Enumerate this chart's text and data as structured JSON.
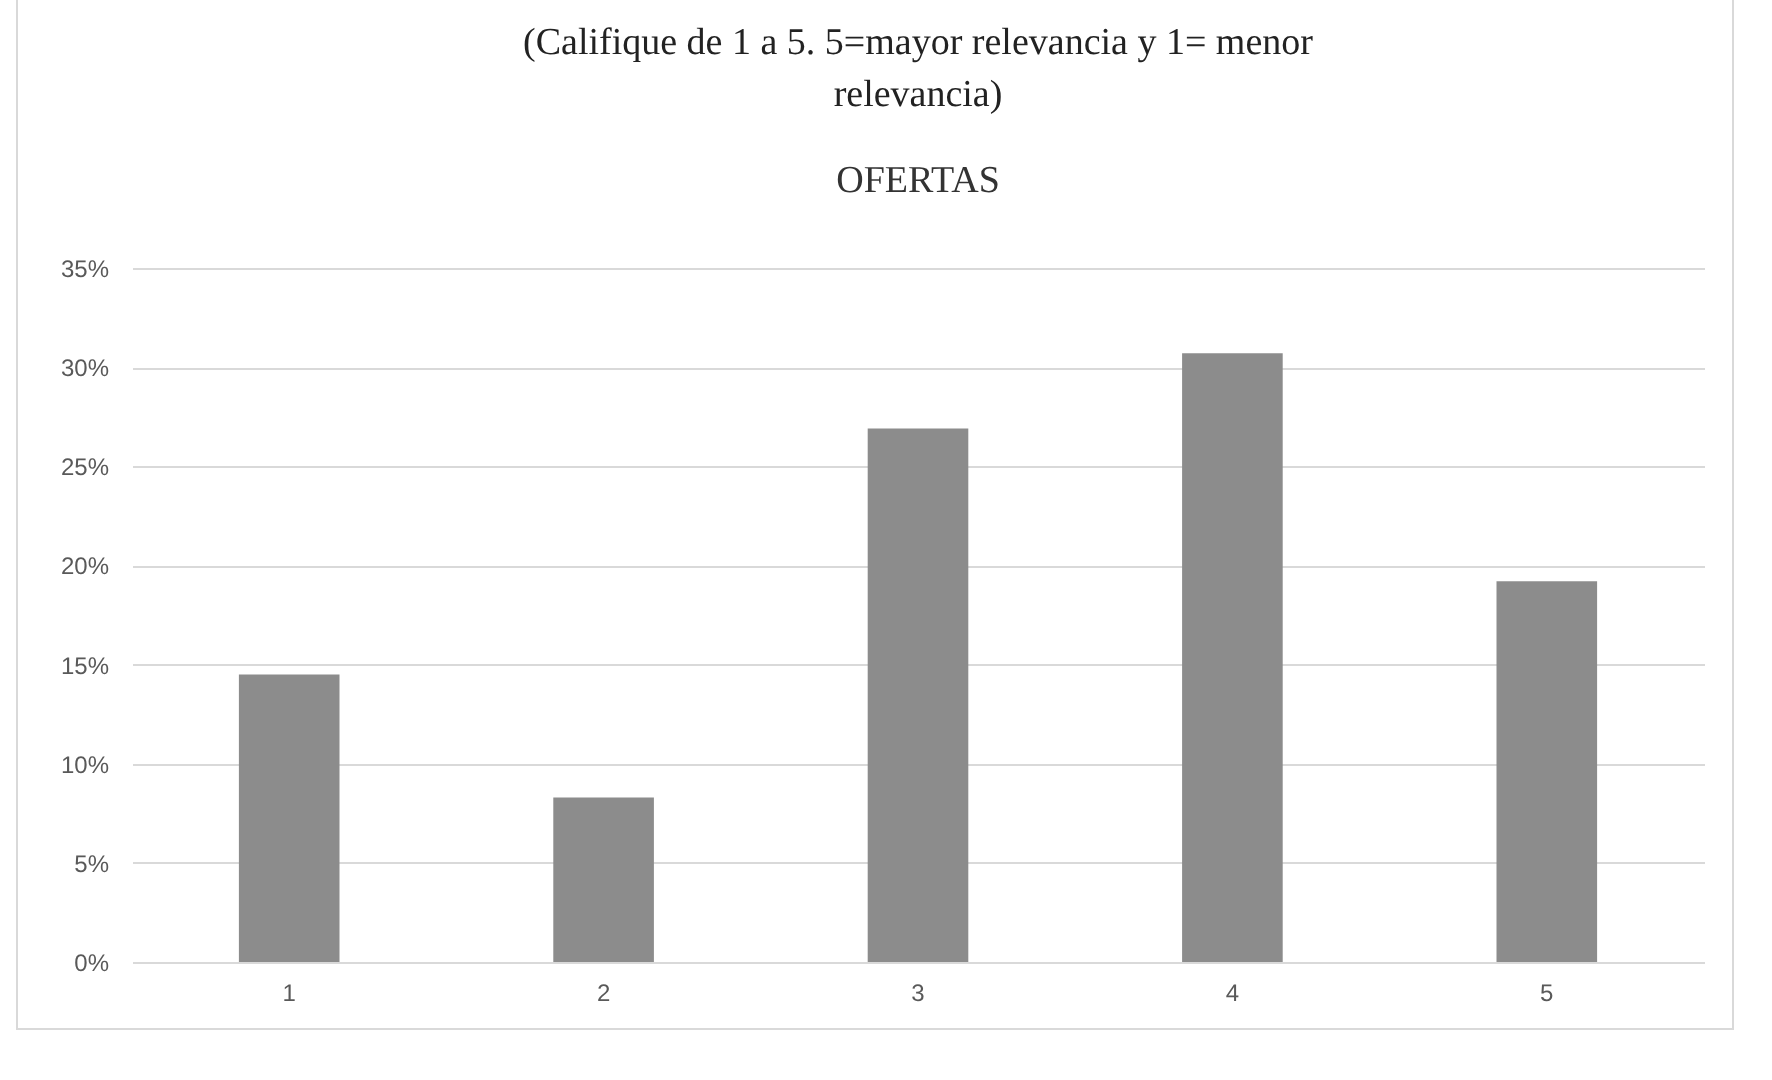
{
  "chart_data": {
    "type": "bar",
    "title": "(Califique de 1 a 5. 5=mayor relevancia y 1= menor relevancia)",
    "subtitle": "OFERTAS",
    "categories": [
      "1",
      "2",
      "3",
      "4",
      "5"
    ],
    "values": [
      14.5,
      8.3,
      26.9,
      30.7,
      19.2
    ],
    "color": "#8c8c8c",
    "ylim": [
      0,
      35
    ],
    "yticks": [
      {
        "value": 0,
        "label": "0%"
      },
      {
        "value": 5,
        "label": "5%"
      },
      {
        "value": 10,
        "label": "10%"
      },
      {
        "value": 15,
        "label": "15%"
      },
      {
        "value": 20,
        "label": "20%"
      },
      {
        "value": 25,
        "label": "25%"
      },
      {
        "value": 30,
        "label": "30%"
      },
      {
        "value": 35,
        "label": "35%"
      }
    ],
    "grid": "y"
  }
}
